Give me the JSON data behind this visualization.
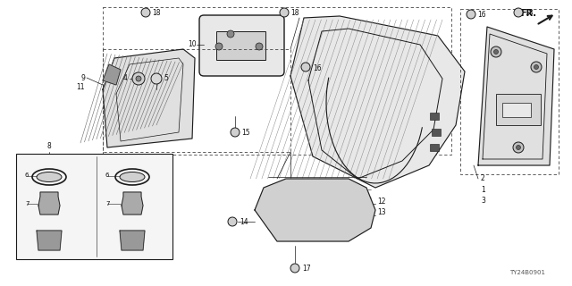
{
  "bg_color": "#ffffff",
  "diagram_id": "TY24B0901",
  "dk": "#1a1a1a",
  "gray": "#888888",
  "lt_gray": "#cccccc",
  "hatch_color": "#777777"
}
